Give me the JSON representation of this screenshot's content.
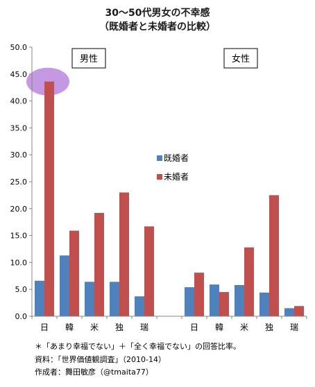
{
  "chart_data": {
    "type": "bar",
    "title": [
      "30～50代男女の不幸感",
      "（既婚者と未婚者の比較）"
    ],
    "ylim": [
      0,
      50
    ],
    "y_ticks": [
      "0.0",
      "5.0",
      "10.0",
      "15.0",
      "20.0",
      "25.0",
      "30.0",
      "35.0",
      "40.0",
      "45.0",
      "50.0"
    ],
    "groups": [
      {
        "label": "男性",
        "categories": [
          "日",
          "韓",
          "米",
          "独",
          "瑞"
        ],
        "series": [
          {
            "name": "既婚者",
            "values": [
              6.6,
              11.3,
              6.4,
              6.4,
              3.7
            ]
          },
          {
            "name": "未婚者",
            "values": [
              43.6,
              15.9,
              19.2,
              23.0,
              16.7
            ]
          }
        ]
      },
      {
        "label": "女性",
        "categories": [
          "日",
          "韓",
          "米",
          "独",
          "瑞"
        ],
        "series": [
          {
            "name": "既婚者",
            "values": [
              5.4,
              5.9,
              5.8,
              4.4,
              1.5
            ]
          },
          {
            "name": "未婚者",
            "values": [
              8.1,
              4.5,
              12.8,
              22.5,
              1.9
            ]
          }
        ]
      }
    ],
    "legend": {
      "placement": "center",
      "entries": [
        {
          "name": "既婚者",
          "color": "#4f81bd"
        },
        {
          "name": "未婚者",
          "color": "#c0504d"
        }
      ]
    },
    "highlight": {
      "group": 0,
      "category": 0,
      "series": 1,
      "color": "#b57edc"
    },
    "grid": false,
    "notes": [
      "＊「あまり幸福でない」＋「全く幸福でない」の回答比率。",
      "資料：「世界価値観調査」（2010-14）",
      "作成者：舞田敏彦（@tmaita77）"
    ]
  }
}
